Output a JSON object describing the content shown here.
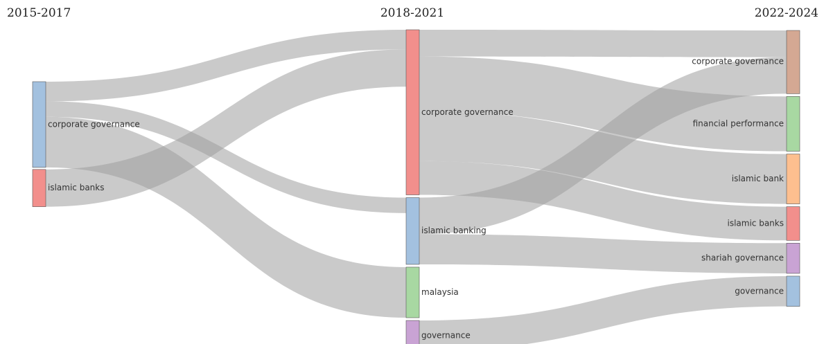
{
  "periods": [
    "2015-2017",
    "2018-2021",
    "2022-2024"
  ],
  "columns": [
    [
      {
        "id": "cg1",
        "label": "corporate governance",
        "color": "#a3c1df"
      },
      {
        "id": "ib1",
        "label": "islamic banks",
        "color": "#f28f8c"
      }
    ],
    [
      {
        "id": "cg2",
        "label": "corporate governance",
        "color": "#f28f8c"
      },
      {
        "id": "ibk2",
        "label": "islamic banking",
        "color": "#a3c1df"
      },
      {
        "id": "my2",
        "label": "malaysia",
        "color": "#a8d8a2"
      },
      {
        "id": "gov2",
        "label": "governance",
        "color": "#c9a3d4"
      }
    ],
    [
      {
        "id": "cg3",
        "label": "corporate governance",
        "color": "#d4a893"
      },
      {
        "id": "fp3",
        "label": "financial performance",
        "color": "#a8d8a2"
      },
      {
        "id": "ibank3",
        "label": "islamic bank",
        "color": "#fdbf8f"
      },
      {
        "id": "ibanks3",
        "label": "islamic banks",
        "color": "#f28f8c"
      },
      {
        "id": "sg3",
        "label": "shariah governance",
        "color": "#c9a3d4"
      },
      {
        "id": "gov3",
        "label": "governance",
        "color": "#a3c1df"
      }
    ]
  ],
  "flows": [
    {
      "source": "cg1",
      "target": "cg2",
      "value": 28
    },
    {
      "source": "cg1",
      "target": "ibk2",
      "value": 22
    },
    {
      "source": "cg1",
      "target": "my2",
      "value": 72
    },
    {
      "source": "ib1",
      "target": "cg2",
      "value": 53
    },
    {
      "source": "cg2",
      "target": "cg3",
      "value": 38
    },
    {
      "source": "cg2",
      "target": "fp3",
      "value": 78
    },
    {
      "source": "cg2",
      "target": "ibank3",
      "value": 71
    },
    {
      "source": "cg2",
      "target": "ibanks3",
      "value": 48
    },
    {
      "source": "ibk2",
      "target": "cg3",
      "value": 52
    },
    {
      "source": "ibk2",
      "target": "sg3",
      "value": 43
    },
    {
      "source": "gov2",
      "target": "gov3",
      "value": 43
    }
  ]
}
